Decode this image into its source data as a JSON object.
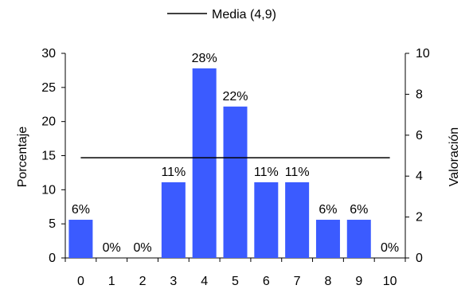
{
  "chart_data": {
    "type": "bar",
    "categories": [
      "0",
      "1",
      "2",
      "3",
      "4",
      "5",
      "6",
      "7",
      "8",
      "9",
      "10"
    ],
    "values": [
      5.6,
      0,
      0,
      11.1,
      27.8,
      22.2,
      11.1,
      11.1,
      5.6,
      5.6,
      0
    ],
    "data_labels": [
      "6%",
      "0%",
      "0%",
      "11%",
      "28%",
      "22%",
      "11%",
      "11%",
      "6%",
      "6%",
      "0%"
    ],
    "title": "",
    "xlabel": "",
    "ylabel": "Porcentaje",
    "y2label": "Valoración",
    "ylim": [
      0,
      30
    ],
    "y_ticks": [
      "0",
      "5",
      "10",
      "15",
      "20",
      "25",
      "30"
    ],
    "y2lim": [
      0,
      10
    ],
    "y2_ticks": [
      "0",
      "2",
      "4",
      "6",
      "8",
      "10"
    ],
    "reference_line": {
      "label": "Media (4,9)",
      "value": 4.9,
      "axis": "secondary"
    },
    "legend_position": "top-center",
    "grid": false,
    "bar_color": "#3b5bff",
    "line_color": "#000000"
  }
}
